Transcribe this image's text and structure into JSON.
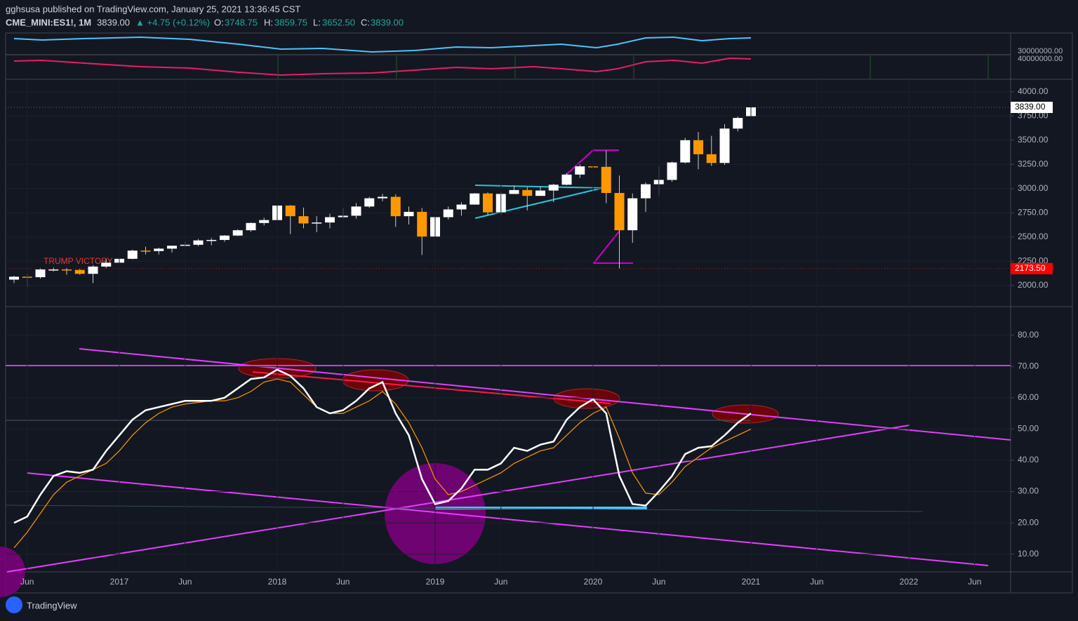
{
  "header": {
    "publisher": "gghsusa published on TradingView.com, January 25, 2021 13:36:45 CST",
    "symbol": "CME_MINI:ES1!, 1M",
    "last": "3839.00",
    "change": "▲ +4.75 (+0.12%)",
    "open_label": "O:",
    "open": "3748.75",
    "high_label": "H:",
    "high": "3859.75",
    "low_label": "L:",
    "low": "3652.50",
    "close_label": "C:",
    "close": "3839.00"
  },
  "top_pane": {
    "yticks": [
      "30000000.00",
      "40000000.00"
    ]
  },
  "footer": {
    "brand": "TradingView"
  },
  "chart_data": [
    {
      "type": "candlestick",
      "annotation": "TRUMP VICTORY",
      "x": [
        "2016-05",
        "2016-06",
        "2016-07",
        "2016-08",
        "2016-09",
        "2016-10",
        "2016-11",
        "2016-12",
        "2017-01",
        "2017-02",
        "2017-03",
        "2017-04",
        "2017-05",
        "2017-06",
        "2017-07",
        "2017-08",
        "2017-09",
        "2017-10",
        "2017-11",
        "2017-12",
        "2018-01",
        "2018-02",
        "2018-03",
        "2018-04",
        "2018-05",
        "2018-06",
        "2018-07",
        "2018-08",
        "2018-09",
        "2018-10",
        "2018-11",
        "2018-12",
        "2019-01",
        "2019-02",
        "2019-03",
        "2019-04",
        "2019-05",
        "2019-06",
        "2019-07",
        "2019-08",
        "2019-09",
        "2019-10",
        "2019-11",
        "2019-12",
        "2020-01",
        "2020-02",
        "2020-03",
        "2020-04",
        "2020-05",
        "2020-06",
        "2020-07",
        "2020-08",
        "2020-09",
        "2020-10",
        "2020-11",
        "2020-12",
        "2021-01"
      ],
      "open": [
        2060,
        2090,
        2085,
        2165,
        2165,
        2160,
        2120,
        2195,
        2235,
        2275,
        2360,
        2355,
        2380,
        2410,
        2420,
        2465,
        2470,
        2515,
        2570,
        2645,
        2675,
        2825,
        2715,
        2640,
        2650,
        2705,
        2720,
        2815,
        2900,
        2915,
        2715,
        2760,
        2505,
        2705,
        2785,
        2835,
        2950,
        2755,
        2945,
        2985,
        2925,
        2980,
        3040,
        3145,
        3230,
        3225,
        2955,
        2570,
        2900,
        3045,
        3090,
        3270,
        3500,
        3355,
        3265,
        3620,
        3748.75
      ],
      "high": [
        2100,
        2115,
        2175,
        2185,
        2180,
        2170,
        2210,
        2275,
        2300,
        2370,
        2400,
        2390,
        2410,
        2450,
        2480,
        2490,
        2520,
        2580,
        2650,
        2700,
        2880,
        2830,
        2805,
        2715,
        2740,
        2800,
        2850,
        2915,
        2945,
        2940,
        2815,
        2800,
        2710,
        2815,
        2860,
        2955,
        2960,
        2965,
        3030,
        3015,
        3025,
        3050,
        3160,
        3250,
        3340,
        3395,
        3135,
        2950,
        3065,
        3230,
        3280,
        3525,
        3585,
        3545,
        3665,
        3745,
        3859.75
      ],
      "low": [
        2025,
        1990,
        2070,
        2145,
        2110,
        2110,
        2025,
        2180,
        2230,
        2270,
        2320,
        2320,
        2340,
        2400,
        2405,
        2415,
        2450,
        2510,
        2555,
        2620,
        2670,
        2530,
        2590,
        2550,
        2590,
        2690,
        2690,
        2800,
        2870,
        2605,
        2630,
        2315,
        2440,
        2680,
        2720,
        2835,
        2730,
        2730,
        2945,
        2775,
        2930,
        2860,
        3035,
        3110,
        3210,
        2850,
        2175,
        2440,
        2760,
        2930,
        3070,
        3260,
        3200,
        3235,
        3245,
        3590,
        3652.5
      ],
      "close": [
        2090,
        2085,
        2165,
        2165,
        2160,
        2120,
        2195,
        2235,
        2275,
        2360,
        2355,
        2380,
        2410,
        2420,
        2465,
        2470,
        2515,
        2570,
        2645,
        2675,
        2825,
        2715,
        2640,
        2650,
        2705,
        2720,
        2815,
        2900,
        2915,
        2715,
        2760,
        2505,
        2705,
        2785,
        2835,
        2950,
        2755,
        2945,
        2985,
        2925,
        2980,
        3040,
        3145,
        3230,
        3225,
        2955,
        2570,
        2900,
        3045,
        3090,
        3270,
        3500,
        3355,
        3265,
        3620,
        3730,
        3839
      ],
      "up_color": "#ffffff",
      "down_color": "#ff9800",
      "ylim": [
        1810,
        4100
      ],
      "yticks": [
        {
          "value": 2000,
          "label": "2000.00"
        },
        {
          "value": 2250,
          "label": "2250.00"
        },
        {
          "value": 2500,
          "label": "2500.00"
        },
        {
          "value": 2750,
          "label": "2750.00"
        },
        {
          "value": 3000,
          "label": "3000.00"
        },
        {
          "value": 3250,
          "label": "3250.00"
        },
        {
          "value": 3500,
          "label": "3500.00"
        },
        {
          "value": 3750,
          "label": "3750.00"
        },
        {
          "value": 4000,
          "label": "4000.00"
        }
      ],
      "price_lines": [
        {
          "value": 3839,
          "label": "3839.00",
          "color": "#ffffff"
        },
        {
          "value": 2173.5,
          "label": "2173.50",
          "color": "#ff0000"
        }
      ]
    },
    {
      "type": "line",
      "x": [
        "2016-05",
        "2016-06",
        "2016-07",
        "2016-08",
        "2016-09",
        "2016-10",
        "2016-11",
        "2016-12",
        "2017-01",
        "2017-02",
        "2017-03",
        "2017-04",
        "2017-05",
        "2017-06",
        "2017-07",
        "2017-08",
        "2017-09",
        "2017-10",
        "2017-11",
        "2017-12",
        "2018-01",
        "2018-02",
        "2018-03",
        "2018-04",
        "2018-05",
        "2018-06",
        "2018-07",
        "2018-08",
        "2018-09",
        "2018-10",
        "2018-11",
        "2018-12",
        "2019-01",
        "2019-02",
        "2019-03",
        "2019-04",
        "2019-05",
        "2019-06",
        "2019-07",
        "2019-08",
        "2019-09",
        "2019-10",
        "2019-11",
        "2019-12",
        "2020-01",
        "2020-02",
        "2020-03",
        "2020-04",
        "2020-05",
        "2020-06",
        "2020-07",
        "2020-08",
        "2020-09",
        "2020-10",
        "2020-11",
        "2020-12",
        "2021-01"
      ],
      "series": [
        {
          "color": "#ffffff",
          "values": [
            20,
            22,
            29,
            35,
            36.5,
            36,
            37,
            43,
            48,
            53,
            56,
            57,
            58,
            59,
            59,
            59,
            60,
            63,
            66,
            66.5,
            69,
            67,
            63,
            57,
            55,
            56,
            59,
            63,
            65,
            55,
            48,
            34,
            26,
            27,
            31,
            37,
            37,
            39,
            44,
            43,
            45,
            46,
            53,
            57,
            59.5,
            55,
            35,
            26,
            25.5,
            30,
            35,
            42,
            44,
            44.5,
            48,
            52,
            55
          ]
        },
        {
          "color": "#ff9800",
          "values": [
            12,
            17,
            23,
            29,
            33,
            35,
            37,
            39,
            43,
            48,
            52,
            55,
            57,
            58,
            58.5,
            59,
            59,
            60,
            62,
            65,
            66,
            65,
            61,
            57,
            55,
            55,
            57,
            59,
            62,
            58,
            52,
            44,
            34,
            29,
            30,
            32,
            34,
            36,
            39,
            41,
            43,
            44,
            48,
            52,
            55,
            57,
            47,
            36,
            29.5,
            29,
            33,
            38,
            41,
            44,
            46,
            48,
            50
          ]
        }
      ],
      "ylim": [
        5,
        88
      ],
      "yticks": [
        {
          "value": 10,
          "label": "10.00"
        },
        {
          "value": 20,
          "label": "20.00"
        },
        {
          "value": 30,
          "label": "30.00"
        },
        {
          "value": 40,
          "label": "40.00"
        },
        {
          "value": 50,
          "label": "50.00"
        },
        {
          "value": 60,
          "label": "60.00"
        },
        {
          "value": 70,
          "label": "70.00"
        },
        {
          "value": 80,
          "label": "80.00"
        }
      ],
      "xticks": [
        {
          "value": "2016-06",
          "label": "Jun"
        },
        {
          "value": "2017-01",
          "label": "2017"
        },
        {
          "value": "2017-06",
          "label": "Jun"
        },
        {
          "value": "2018-01",
          "label": "2018"
        },
        {
          "value": "2018-06",
          "label": "Jun"
        },
        {
          "value": "2019-01",
          "label": "2019"
        },
        {
          "value": "2019-06",
          "label": "Jun"
        },
        {
          "value": "2020-01",
          "label": "2020"
        },
        {
          "value": "2020-06",
          "label": "Jun"
        },
        {
          "value": "2021-01",
          "label": "2021"
        },
        {
          "value": "2021-06",
          "label": "Jun"
        },
        {
          "value": "2022-01",
          "label": "2022"
        },
        {
          "value": "2022-06",
          "label": "Jun"
        }
      ]
    }
  ]
}
